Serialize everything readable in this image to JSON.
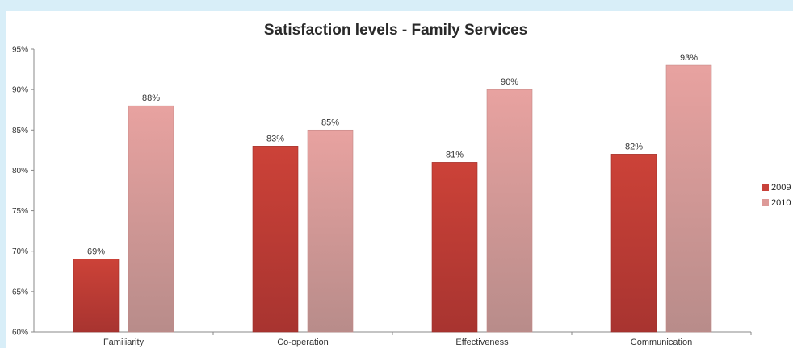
{
  "chart_data": {
    "type": "bar",
    "title": "Satisfaction levels - Family Services",
    "categories": [
      "Familiarity",
      "Co-operation",
      "Effectiveness",
      "Communication"
    ],
    "series": [
      {
        "name": "2009",
        "values": [
          69,
          83,
          81,
          82
        ],
        "labels": [
          "69%",
          "83%",
          "81%",
          "82%"
        ],
        "color": "#c8413a"
      },
      {
        "name": "2010",
        "values": [
          88,
          85,
          90,
          93
        ],
        "labels": [
          "88%",
          "85%",
          "90%",
          "93%"
        ],
        "color": "#dd9a98"
      }
    ],
    "ylim": [
      60,
      95
    ],
    "yticks": [
      60,
      65,
      70,
      75,
      80,
      85,
      90,
      95
    ],
    "ytick_labels": [
      "60%",
      "65%",
      "70%",
      "75%",
      "80%",
      "85%",
      "90%",
      "95%"
    ],
    "xlabel": "",
    "ylabel": "",
    "legend_position": "right",
    "grid": false
  }
}
